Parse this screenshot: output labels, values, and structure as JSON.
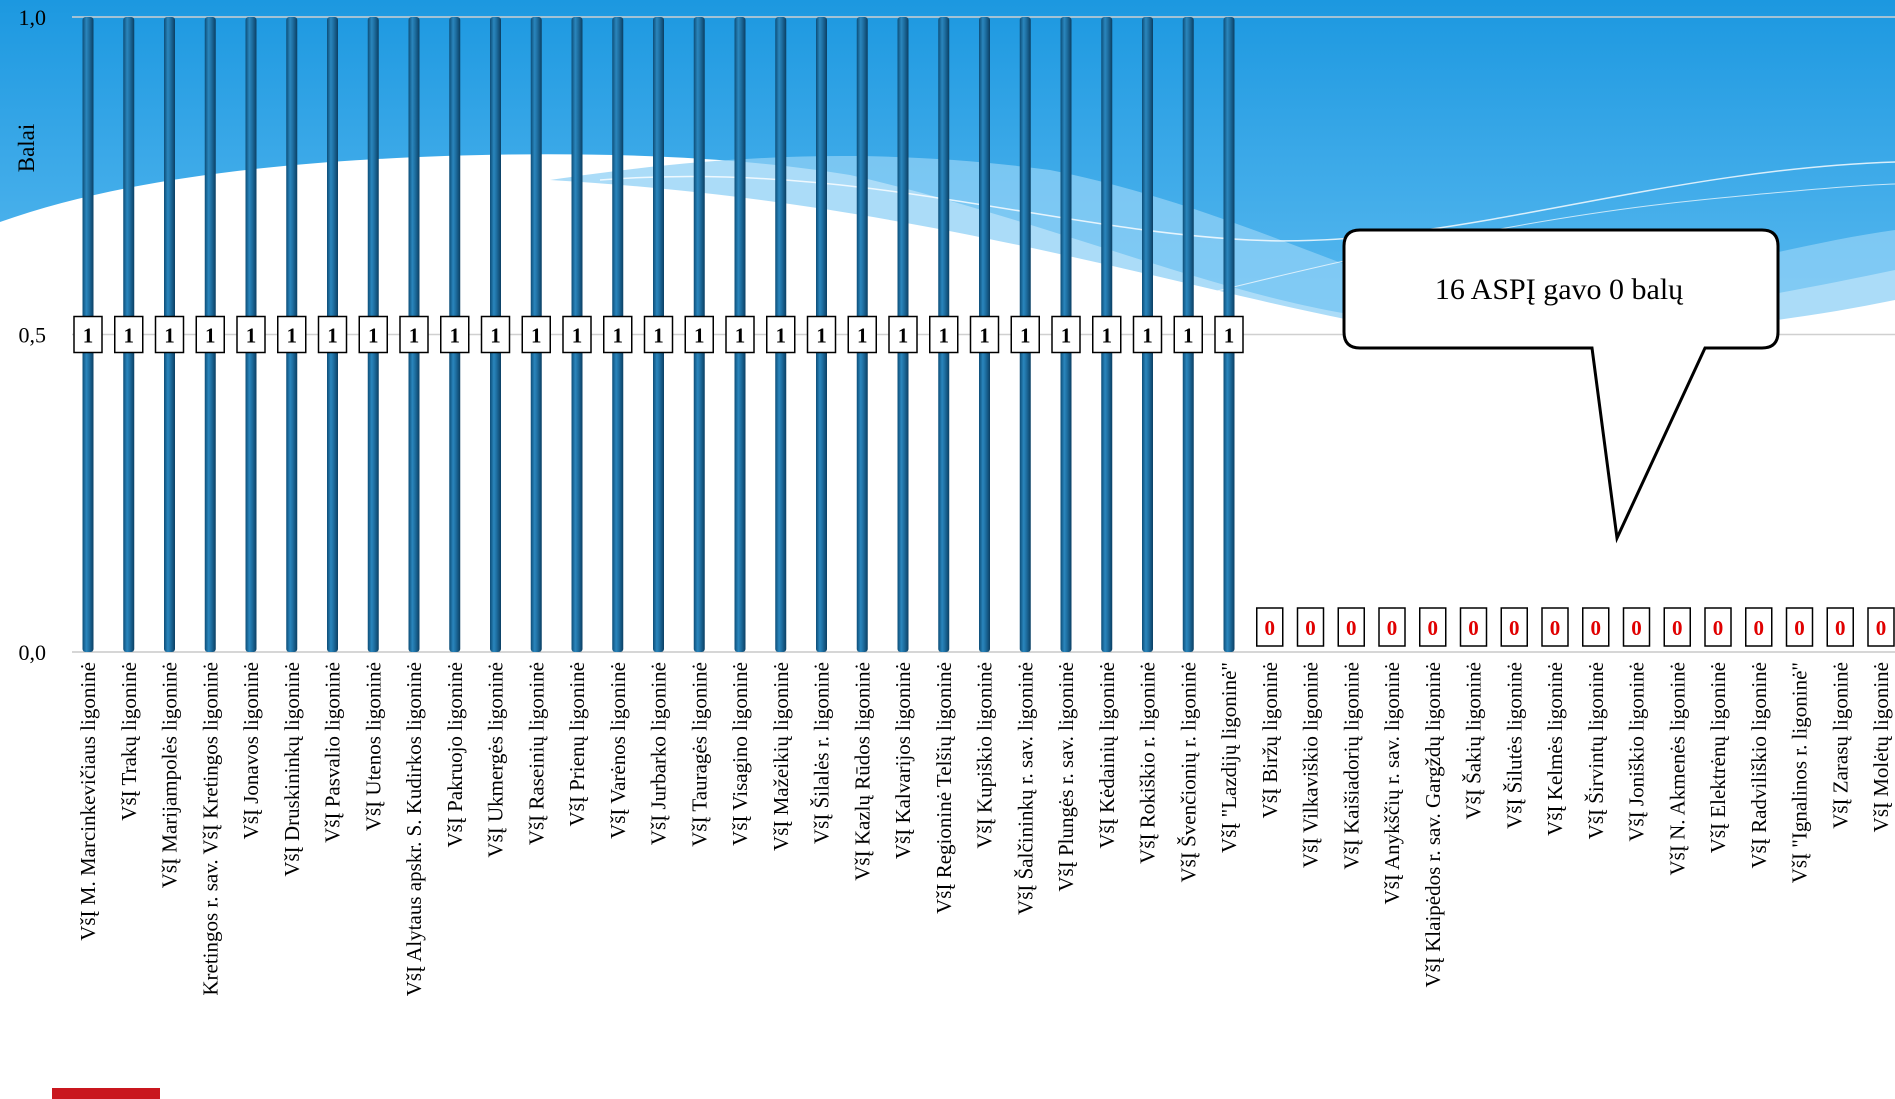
{
  "chart_data": {
    "type": "bar",
    "ylabel": "Balai",
    "ylim": [
      0,
      1
    ],
    "yticks": [
      "0,0",
      "0,5",
      "1,0"
    ],
    "gridlines": true,
    "colors": {
      "bar": "#1e6ea0",
      "label_one": "#000000",
      "label_zero": "#e00000"
    },
    "categories": [
      "VšĮ M. Marcinkevičiaus ligoninė",
      "VšĮ Trakų ligoninė",
      "VšĮ Marijampolės ligoninė",
      "Kretingos r. sav. VšĮ Kretingos ligoninė",
      "VšĮ Jonavos ligoninė",
      "VšĮ Druskininkų ligoninė",
      "VšĮ Pasvalio ligoninė",
      "VšĮ Utenos ligoninė",
      "VšĮ Alytaus apskr. S. Kudirkos ligoninė",
      "VšĮ Pakruojo ligoninė",
      "VšĮ Ukmergės ligoninė",
      "VšĮ Raseinių ligoninė",
      "VšĮ Prienų ligoninė",
      "VšĮ Varėnos ligoninė",
      "VšĮ Jurbarko ligoninė",
      "VšĮ Tauragės ligoninė",
      "VšĮ Visagino ligoninė",
      "VšĮ Mažeikių ligoninė",
      "VšĮ Šilalės r. ligoninė",
      "VšĮ Kazlų Rūdos ligoninė",
      "VšĮ Kalvarijos ligoninė",
      "VšĮ Regioninė Telšių ligoninė",
      "VšĮ Kupiškio ligoninė",
      "VšĮ Šalčininkų r. sav. ligoninė",
      "VšĮ Plungės r. sav. ligoninė",
      "VšĮ Kėdainių ligoninė",
      "VšĮ Rokiškio r. ligoninė",
      "VšĮ Švenčionių r. ligoninė",
      "VšĮ \"Lazdijų ligoninė\"",
      "VšĮ Biržų ligoninė",
      "VšĮ Vilkaviškio ligoninė",
      "VšĮ Kaišiadorių ligoninė",
      "VšĮ Anykščių r. sav. ligoninė",
      "VšĮ Klaipėdos r. sav. Gargždų ligoninė",
      "VšĮ Šakių ligoninė",
      "VšĮ Šilutės ligoninė",
      "VšĮ Kelmės ligoninė",
      "VšĮ Širvintų ligoninė",
      "VšĮ Joniškio ligoninė",
      "VšĮ N. Akmenės ligoninė",
      "VšĮ Elektrėnų ligoninė",
      "VšĮ Radviliškio ligoninė",
      "VšĮ \"Ignalinos r. ligoninė\"",
      "VšĮ Zarasų ligoninė",
      "VšĮ Molėtų ligoninė"
    ],
    "values": [
      1,
      1,
      1,
      1,
      1,
      1,
      1,
      1,
      1,
      1,
      1,
      1,
      1,
      1,
      1,
      1,
      1,
      1,
      1,
      1,
      1,
      1,
      1,
      1,
      1,
      1,
      1,
      1,
      1,
      0,
      0,
      0,
      0,
      0,
      0,
      0,
      0,
      0,
      0,
      0,
      0,
      0,
      0,
      0,
      0
    ],
    "data_labels": [
      "1",
      "1",
      "1",
      "1",
      "1",
      "1",
      "1",
      "1",
      "1",
      "1",
      "1",
      "1",
      "1",
      "1",
      "1",
      "1",
      "1",
      "1",
      "1",
      "1",
      "1",
      "1",
      "1",
      "1",
      "1",
      "1",
      "1",
      "1",
      "1",
      "0",
      "0",
      "0",
      "0",
      "0",
      "0",
      "0",
      "0",
      "0",
      "0",
      "0",
      "0",
      "0",
      "0",
      "0",
      "0"
    ],
    "annotations": [
      "16 ASPĮ gavo 0 balų"
    ]
  }
}
